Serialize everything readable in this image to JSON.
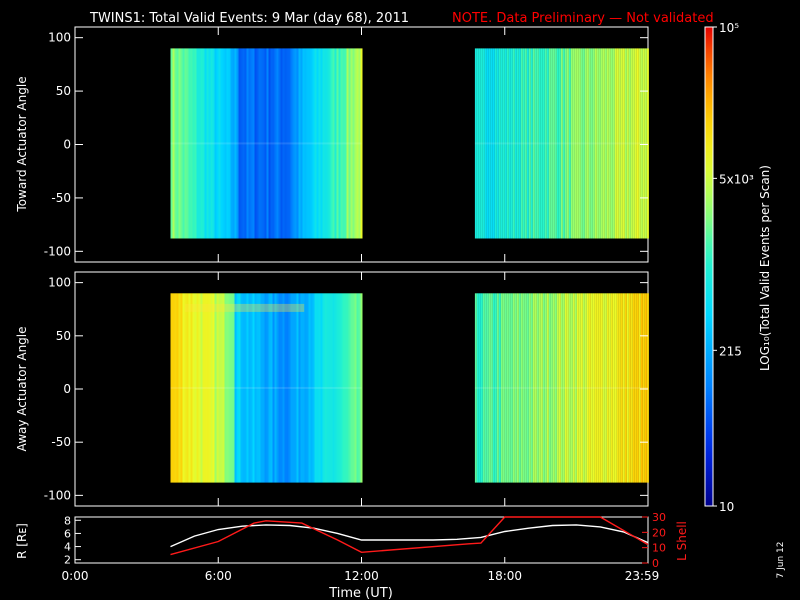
{
  "header": {
    "title": "TWINS1: Total Valid Events:  9 Mar (day  68), 2011",
    "note": "NOTE. Data Preliminary — Not validated"
  },
  "side_stamp": "7 Jun 12",
  "colors": {
    "background": "#000000",
    "foreground": "#ffffff",
    "note": "#ff0000",
    "lshell": "#ff1a1a",
    "radius": "#ffffff"
  },
  "chart_data": [
    {
      "type": "heatmap",
      "id": "toward",
      "ylabel": "Toward Actuator Angle",
      "ylim": [
        -110,
        110
      ],
      "yticks": [
        100,
        50,
        0,
        -50,
        -100
      ],
      "xlim": [
        0,
        24
      ],
      "angle_range": [
        -88,
        90
      ],
      "segments": [
        {
          "start": 4.0,
          "end": 12.0,
          "profile": "toward-a"
        },
        {
          "start": 16.75,
          "end": 24.0,
          "profile": "toward-b"
        }
      ]
    },
    {
      "type": "heatmap",
      "id": "away",
      "ylabel": "Away Actuator Angle",
      "ylim": [
        -110,
        110
      ],
      "yticks": [
        100,
        50,
        0,
        -50,
        -100
      ],
      "xlim": [
        0,
        24
      ],
      "angle_range": [
        -88,
        90
      ],
      "segments": [
        {
          "start": 4.0,
          "end": 12.0,
          "profile": "away-a"
        },
        {
          "start": 16.75,
          "end": 24.0,
          "profile": "away-b"
        }
      ]
    },
    {
      "type": "line",
      "id": "orbit",
      "ylabel_left": "R [Rᴇ]",
      "ylabel_right": "L Shell",
      "yticks_left": [
        8,
        6,
        4,
        2
      ],
      "ylim_left": [
        1.5,
        8.5
      ],
      "yticks_right": [
        30,
        20,
        10,
        0
      ],
      "ylim_right": [
        0,
        30
      ],
      "xlim": [
        0,
        24
      ],
      "xticks": [
        0,
        6,
        12,
        18,
        24
      ],
      "xtick_labels": [
        "0:00",
        "6:00",
        "12:00",
        "18:00",
        "23:59"
      ],
      "xlabel": "Time (UT)",
      "series": [
        {
          "name": "R",
          "axis": "left",
          "x": [
            4.0,
            5.0,
            6.0,
            7.0,
            8.0,
            9.0,
            10.0,
            11.0,
            12.0,
            13.0,
            14.0,
            15.0,
            16.0,
            17.0,
            18.0,
            19.0,
            20.0,
            21.0,
            22.0,
            23.0,
            24.0
          ],
          "y": [
            4.0,
            5.6,
            6.6,
            7.1,
            7.3,
            7.2,
            6.8,
            6.0,
            5.0,
            5.0,
            5.0,
            5.0,
            5.1,
            5.4,
            6.3,
            6.8,
            7.2,
            7.3,
            7.0,
            6.2,
            4.6
          ]
        },
        {
          "name": "L Shell",
          "axis": "right",
          "x": [
            4.0,
            6.0,
            7.5,
            8.0,
            9.5,
            11.0,
            12.0,
            16.5,
            17.0,
            18.0,
            22.0,
            24.0
          ],
          "y": [
            5.5,
            14.0,
            26.0,
            27.5,
            26.0,
            15.0,
            7.0,
            12.5,
            13.0,
            30.0,
            30.0,
            12.0
          ]
        }
      ]
    },
    {
      "type": "colorbar",
      "id": "scale",
      "label": "LOG₁₀(Total Valid  Events per Scan)",
      "ticks": [
        {
          "label": "10⁵",
          "frac": 1.0
        },
        {
          "label": "5x10³",
          "frac": 0.684
        },
        {
          "label": "215",
          "frac": 0.325
        },
        {
          "label": "10",
          "frac": 0.0
        }
      ]
    }
  ]
}
